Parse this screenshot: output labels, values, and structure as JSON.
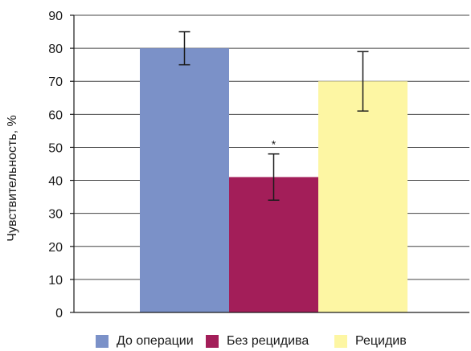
{
  "chart_data": {
    "type": "bar",
    "ylabel": "Чувствительность, %",
    "ylim": [
      0,
      90
    ],
    "yticks": [
      0,
      10,
      20,
      30,
      40,
      50,
      60,
      70,
      80,
      90
    ],
    "grid": true,
    "legend_position": "bottom",
    "series": [
      {
        "name": "До операции",
        "value": 80,
        "error_low": 75,
        "error_high": 85,
        "color": "#7b91c8",
        "annotation": ""
      },
      {
        "name": "Без рецидива",
        "value": 41,
        "error_low": 34,
        "error_high": 48,
        "color": "#a31e59",
        "annotation": "*"
      },
      {
        "name": "Рецидив",
        "value": 70,
        "error_low": 61,
        "error_high": 79,
        "color": "#fdf6a3",
        "annotation": ""
      }
    ]
  }
}
